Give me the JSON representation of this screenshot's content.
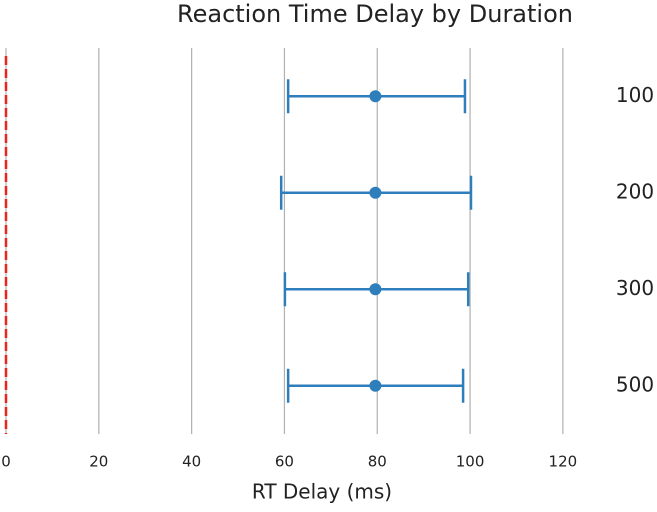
{
  "chart_data": {
    "type": "interval",
    "title": "Reaction Time Delay by Duration",
    "x_label": "RT Delay (ms)",
    "categories": [
      "100",
      "200",
      "300",
      "500"
    ],
    "series": [
      {
        "color": "#2f7ebc",
        "values": [
          79.6,
          79.6,
          79.6,
          79.6
        ],
        "ci_low": [
          60.8,
          59.3,
          60.1,
          60.8
        ],
        "ci_high": [
          98.9,
          100.2,
          99.6,
          98.5
        ]
      }
    ],
    "xlim": [
      0,
      128
    ],
    "xticks": [
      0,
      20,
      40,
      60,
      80,
      100,
      120
    ],
    "grid": true,
    "reference_line": {
      "value": 0,
      "color": "#e8251f"
    }
  }
}
